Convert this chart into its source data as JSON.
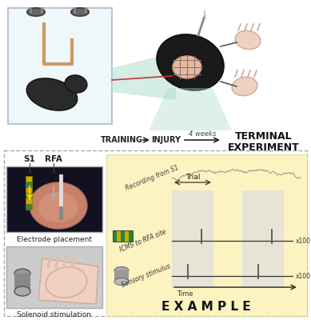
{
  "background_color": "#ffffff",
  "border_color": "#aaaaaa",
  "top_panel": {
    "training_text": "TRAINING",
    "injury_text": "INJURY",
    "weeks_text": "4 weeks",
    "terminal_line1": "TERMINAL",
    "terminal_line2": "EXPERIMENT",
    "arrow_color": "#222222"
  },
  "bottom_left": {
    "s1_label": "S1",
    "rfa_label": "RFA",
    "electrode_caption": "Electrode placement",
    "solenoid_caption": "Solenoid stimulation",
    "border_color": "#aaaaaa"
  },
  "bottom_right": {
    "bg_color": "#fdf3c0",
    "recording_label": "Recording from S1",
    "icms_label": "ICMS to RFA site",
    "sensory_label": "Sensory stimulus",
    "trial_label": "Trial",
    "time_label": "Time",
    "x100_label": "x100",
    "example_label": "EXAMPLE",
    "waveform_color": "#888888",
    "line_color": "#333333",
    "pulse_color": "#555555",
    "shaded_color": "#e0e0e0",
    "arrow_color": "#333333",
    "brace_color": "#333333"
  }
}
